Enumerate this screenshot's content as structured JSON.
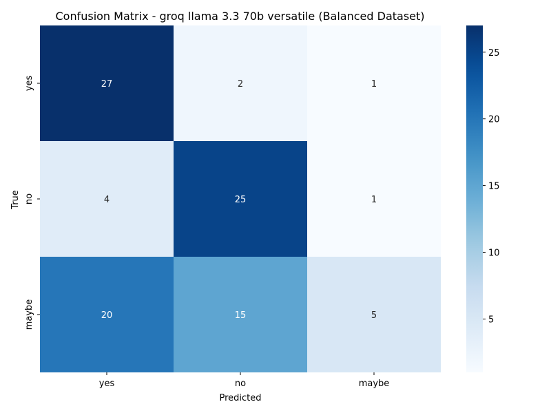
{
  "chart_data": {
    "type": "heatmap",
    "title": "Confusion Matrix - groq llama 3.3 70b versatile (Balanced Dataset)",
    "xlabel": "Predicted",
    "ylabel": "True",
    "x_categories": [
      "yes",
      "no",
      "maybe"
    ],
    "y_categories": [
      "yes",
      "no",
      "maybe"
    ],
    "values": [
      [
        27,
        2,
        1
      ],
      [
        4,
        25,
        1
      ],
      [
        20,
        15,
        5
      ]
    ],
    "colorbar": {
      "cmap": "Blues",
      "range": [
        1,
        27
      ],
      "ticks": [
        5,
        10,
        15,
        20,
        25
      ]
    },
    "annotations": true,
    "grid": false
  }
}
